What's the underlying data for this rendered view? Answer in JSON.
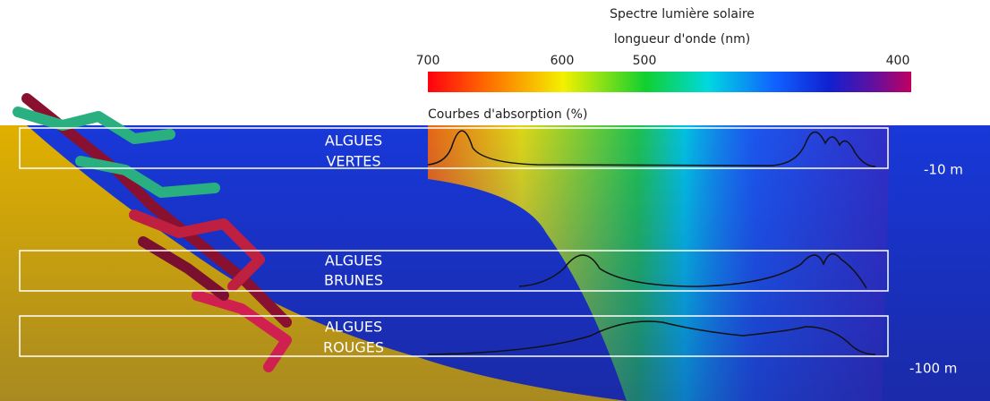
{
  "spectrum": {
    "title": [
      "Spectre lumière solaire",
      "longueur d'onde (nm)"
    ],
    "ticks": [
      700,
      600,
      500,
      400
    ]
  },
  "absorption_title": "Courbes d'absorption (%)",
  "algae": [
    {
      "label": [
        "ALGUES",
        "VERTES"
      ]
    },
    {
      "label": [
        "ALGUES",
        "BRUNES"
      ]
    },
    {
      "label": [
        "ALGUES",
        "ROUGES"
      ]
    }
  ],
  "depths": [
    "-10 m",
    "-100 m"
  ]
}
